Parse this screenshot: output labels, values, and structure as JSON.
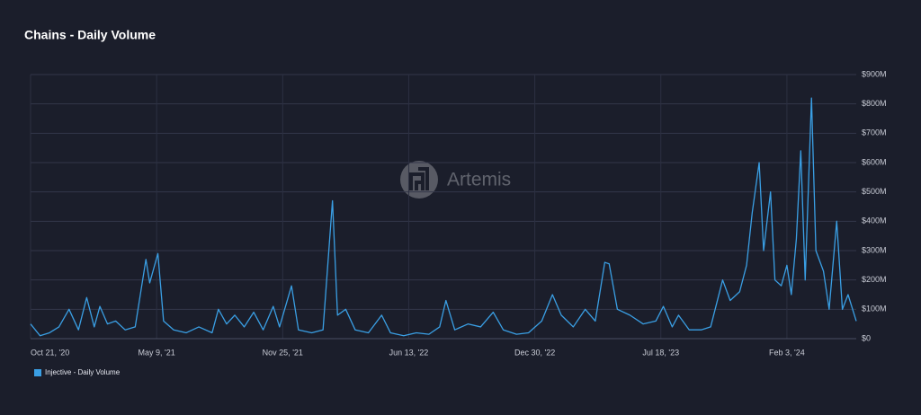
{
  "chart_data": {
    "type": "line",
    "title": "Chains - Daily Volume",
    "watermark": "Artemis",
    "x": [
      "2020-10-21",
      "2020-11-05",
      "2020-11-20",
      "2020-12-05",
      "2020-12-21",
      "2021-01-05",
      "2021-01-18",
      "2021-01-30",
      "2021-02-08",
      "2021-02-20",
      "2021-03-05",
      "2021-03-20",
      "2021-04-05",
      "2021-04-22",
      "2021-04-28",
      "2021-05-11",
      "2021-05-20",
      "2021-06-05",
      "2021-06-25",
      "2021-07-15",
      "2021-08-05",
      "2021-08-15",
      "2021-08-28",
      "2021-09-10",
      "2021-09-25",
      "2021-10-10",
      "2021-10-25",
      "2021-11-10",
      "2021-11-20",
      "2021-12-09",
      "2021-12-20",
      "2022-01-10",
      "2022-01-28",
      "2022-02-12",
      "2022-02-20",
      "2022-03-05",
      "2022-03-20",
      "2022-04-10",
      "2022-05-01",
      "2022-05-15",
      "2022-06-05",
      "2022-06-25",
      "2022-07-15",
      "2022-08-01",
      "2022-08-11",
      "2022-08-25",
      "2022-09-15",
      "2022-10-05",
      "2022-10-25",
      "2022-11-10",
      "2022-12-01",
      "2022-12-20",
      "2023-01-10",
      "2023-01-27",
      "2023-02-10",
      "2023-03-01",
      "2023-03-20",
      "2023-04-05",
      "2023-04-20",
      "2023-04-27",
      "2023-05-10",
      "2023-05-30",
      "2023-06-20",
      "2023-07-10",
      "2023-07-22",
      "2023-08-05",
      "2023-08-15",
      "2023-09-01",
      "2023-09-20",
      "2023-10-05",
      "2023-10-24",
      "2023-11-05",
      "2023-11-20",
      "2023-12-01",
      "2023-12-10",
      "2023-12-21",
      "2023-12-28",
      "2024-01-08",
      "2024-01-15",
      "2024-01-25",
      "2024-02-03",
      "2024-02-10",
      "2024-02-18",
      "2024-02-25",
      "2024-03-03",
      "2024-03-13",
      "2024-03-20",
      "2024-04-01",
      "2024-04-10",
      "2024-04-22",
      "2024-05-01",
      "2024-05-10",
      "2024-05-23"
    ],
    "series": [
      {
        "name": "Injective - Daily Volume",
        "color": "#3a9fe4",
        "values": [
          50000000,
          10000000,
          20000000,
          40000000,
          100000000,
          30000000,
          140000000,
          40000000,
          110000000,
          50000000,
          60000000,
          30000000,
          40000000,
          270000000,
          190000000,
          290000000,
          60000000,
          30000000,
          20000000,
          40000000,
          20000000,
          100000000,
          50000000,
          80000000,
          40000000,
          90000000,
          30000000,
          110000000,
          40000000,
          180000000,
          30000000,
          20000000,
          30000000,
          470000000,
          80000000,
          100000000,
          30000000,
          20000000,
          80000000,
          20000000,
          10000000,
          20000000,
          15000000,
          40000000,
          130000000,
          30000000,
          50000000,
          40000000,
          90000000,
          30000000,
          15000000,
          20000000,
          60000000,
          150000000,
          80000000,
          40000000,
          100000000,
          60000000,
          260000000,
          255000000,
          100000000,
          80000000,
          50000000,
          60000000,
          110000000,
          40000000,
          80000000,
          30000000,
          30000000,
          40000000,
          200000000,
          130000000,
          160000000,
          250000000,
          430000000,
          600000000,
          300000000,
          500000000,
          200000000,
          180000000,
          250000000,
          150000000,
          340000000,
          640000000,
          200000000,
          820000000,
          300000000,
          230000000,
          100000000,
          400000000,
          100000000,
          150000000,
          60000000
        ]
      }
    ],
    "xlim": [
      "2020-10-21",
      "2024-05-23"
    ],
    "xticks": [
      {
        "value": "2020-10-21",
        "label": "Oct 21, '20"
      },
      {
        "value": "2021-05-09",
        "label": "May 9, '21"
      },
      {
        "value": "2021-11-25",
        "label": "Nov 25, '21"
      },
      {
        "value": "2022-06-13",
        "label": "Jun 13, '22"
      },
      {
        "value": "2022-12-30",
        "label": "Dec 30, '22"
      },
      {
        "value": "2023-07-18",
        "label": "Jul 18, '23"
      },
      {
        "value": "2024-02-03",
        "label": "Feb 3, '24"
      }
    ],
    "ylim": [
      0,
      900000000
    ],
    "yticks": [
      {
        "value": 0,
        "label": "$0"
      },
      {
        "value": 100000000,
        "label": "$100M"
      },
      {
        "value": 200000000,
        "label": "$200M"
      },
      {
        "value": 300000000,
        "label": "$300M"
      },
      {
        "value": 400000000,
        "label": "$400M"
      },
      {
        "value": 500000000,
        "label": "$500M"
      },
      {
        "value": 600000000,
        "label": "$600M"
      },
      {
        "value": 700000000,
        "label": "$700M"
      },
      {
        "value": 800000000,
        "label": "$800M"
      },
      {
        "value": 900000000,
        "label": "$900M"
      }
    ],
    "grid": true
  }
}
